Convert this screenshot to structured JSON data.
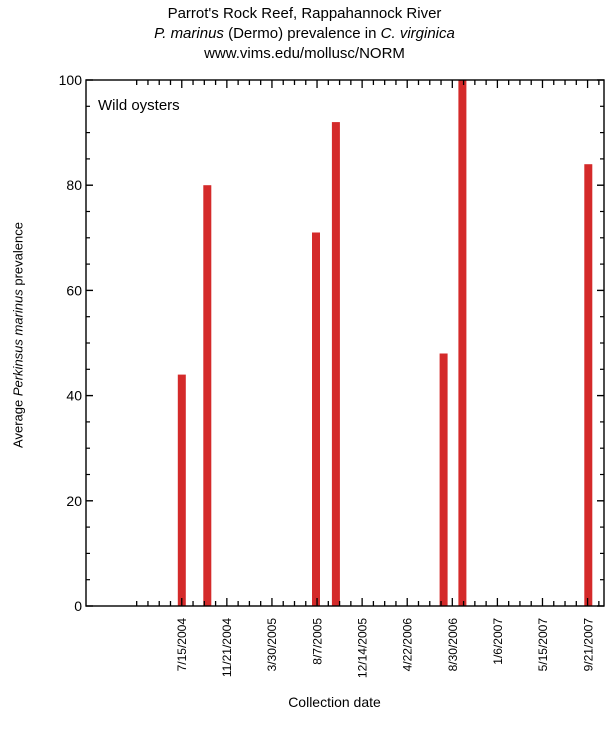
{
  "title": {
    "line1": "Parrot's Rock Reef, Rappahannock River",
    "line2_pre": "P. marinus",
    "line2_mid": " (Dermo) prevalence in ",
    "line2_post": "C. virginica",
    "line3": "www.vims.edu/mollusc/NORM"
  },
  "chart_data": {
    "type": "bar",
    "title": "Parrot's Rock Reef, Rappahannock River",
    "annotation": "Wild oysters",
    "ylabel_pre": "Average ",
    "ylabel_italic": "Perkinsus marinus",
    "ylabel_post": " prevalence",
    "xlabel": "Collection date",
    "ylim": [
      0,
      100
    ],
    "yticks": [
      0,
      20,
      40,
      60,
      80,
      100
    ],
    "xlim": [
      "2003-10-15",
      "2007-11-05"
    ],
    "xticks": [
      "7/15/2004",
      "11/21/2004",
      "3/30/2005",
      "8/7/2005",
      "12/14/2005",
      "4/22/2006",
      "8/30/2006",
      "1/6/2007",
      "5/15/2007",
      "9/21/2007"
    ],
    "points": [
      {
        "date": "7/15/2004",
        "value": 44
      },
      {
        "date": "9/26/2004",
        "value": 80
      },
      {
        "date": "8/3/2005",
        "value": 71
      },
      {
        "date": "9/29/2005",
        "value": 92
      },
      {
        "date": "8/3/2006",
        "value": 48
      },
      {
        "date": "9/26/2006",
        "value": 100
      },
      {
        "date": "9/21/2007",
        "value": 84
      }
    ],
    "bar_color": "#d42a2a",
    "grid": false
  }
}
